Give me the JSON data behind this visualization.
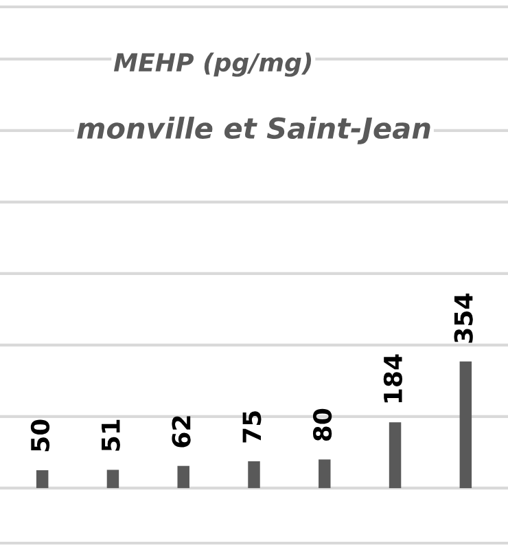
{
  "chart_data": {
    "type": "bar",
    "title": "MEHP (pg/mg)",
    "subtitle": "monville et Saint-Jean",
    "categories": [
      null,
      null,
      null,
      null,
      null,
      null,
      null
    ],
    "values": [
      50,
      51,
      62,
      75,
      80,
      184,
      354
    ],
    "color": "#595959",
    "data_labels": true,
    "ylim": [
      -154,
      1346
    ],
    "yticks": [
      {
        "value": 0,
        "label": null
      },
      {
        "value": 200,
        "label": null
      },
      {
        "value": 400,
        "label": null
      },
      {
        "value": 600,
        "label": null
      },
      {
        "value": 800,
        "label": null
      },
      {
        "value": 1000,
        "label": null
      },
      {
        "value": 1200,
        "label": null
      }
    ],
    "grid": "y"
  }
}
